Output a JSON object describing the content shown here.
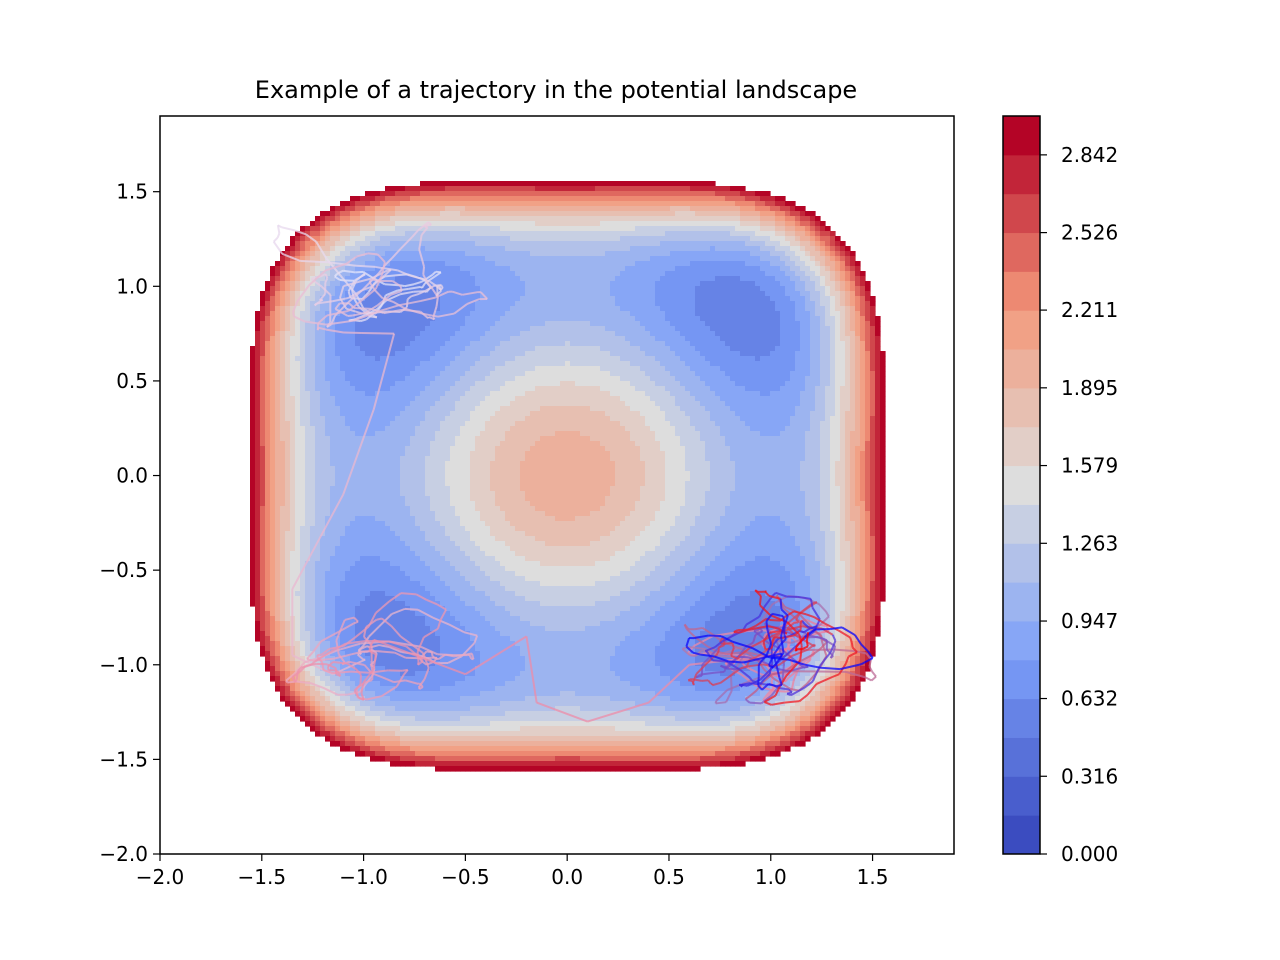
{
  "chart_data": {
    "type": "contour",
    "title": "Example of a trajectory in the potential landscape",
    "xlabel": "",
    "ylabel": "",
    "xlim": [
      -2.0,
      1.9
    ],
    "ylim": [
      -2.0,
      1.9
    ],
    "x_ticks": [
      -2.0,
      -1.5,
      -1.0,
      -0.5,
      0.0,
      0.5,
      1.0,
      1.5
    ],
    "x_tick_labels": [
      "−2.0",
      "−1.5",
      "−1.0",
      "−0.5",
      "0.0",
      "0.5",
      "1.0",
      "1.5"
    ],
    "y_ticks": [
      -2.0,
      -1.5,
      -1.0,
      -0.5,
      0.0,
      0.5,
      1.0,
      1.5
    ],
    "y_tick_labels": [
      "−2.0",
      "−1.5",
      "−1.0",
      "−0.5",
      "0.0",
      "0.5",
      "1.0",
      "1.5"
    ],
    "potential": "V(x,y) = (x^2-1)^2 + (y^2-1)^2 + 0.7*x^2*y^2",
    "colormap": "coolwarm",
    "color_levels": 19,
    "vmin": 0.0,
    "vmax": 3.0,
    "colorbar_ticks": [
      0.0,
      0.316,
      0.632,
      0.947,
      1.263,
      1.579,
      1.895,
      2.211,
      2.526,
      2.842
    ],
    "colorbar_tick_labels": [
      "0.000",
      "0.316",
      "0.632",
      "0.947",
      "1.263",
      "1.579",
      "1.895",
      "2.211",
      "2.526",
      "2.842"
    ],
    "grid": false,
    "trajectory": {
      "color_start": "#ffffff",
      "color_end": "#ff0000",
      "color_blue": "#0000ff",
      "clusters": [
        {
          "center": [
            -1.0,
            1.0
          ],
          "radius": [
            0.25,
            0.15
          ],
          "order": 1
        },
        {
          "center": [
            -0.95,
            -0.95
          ],
          "radius": [
            0.25,
            0.15
          ],
          "order": 2
        },
        {
          "center": [
            1.0,
            -0.95
          ],
          "radius": [
            0.25,
            0.15
          ],
          "order": 3
        }
      ]
    }
  }
}
